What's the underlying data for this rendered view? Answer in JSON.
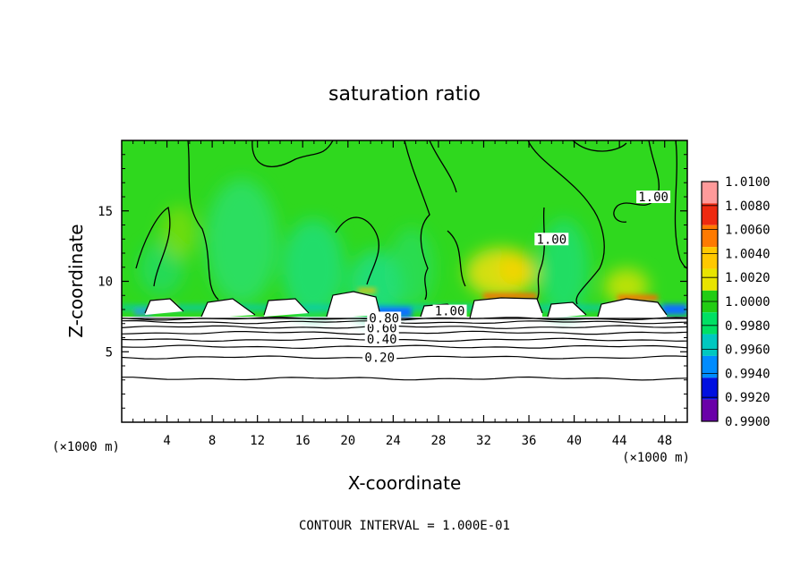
{
  "chart_data": {
    "type": "heatmap",
    "title": "saturation ratio",
    "xlabel": "X-coordinate",
    "ylabel": "Z-coordinate",
    "x_unit_left": "(×1000 m)",
    "x_unit_right": "(×1000 m)",
    "xlim": [
      0,
      50
    ],
    "ylim": [
      0,
      20
    ],
    "x_ticks": [
      4,
      8,
      12,
      16,
      20,
      24,
      28,
      32,
      36,
      40,
      44,
      48
    ],
    "y_ticks": [
      5,
      10,
      15
    ],
    "footer": "CONTOUR INTERVAL = 1.000E-01",
    "colorbar": {
      "labels": [
        "1.0100",
        "1.0080",
        "1.0060",
        "1.0040",
        "1.0020",
        "1.0000",
        "0.9980",
        "0.9960",
        "0.9940",
        "0.9920",
        "0.9900"
      ],
      "colors": [
        "#ff9a9a",
        "#ee2a10",
        "#ff7a00",
        "#ffc800",
        "#e8e400",
        "#22cc14",
        "#00e064",
        "#00c8c0",
        "#008cff",
        "#0010e0",
        "#6a00a8"
      ]
    },
    "contour_labels": [
      {
        "text": "0.20",
        "x": 22.8,
        "z": 4.6
      },
      {
        "text": "0.40",
        "x": 23.0,
        "z": 5.9
      },
      {
        "text": "0.60",
        "x": 23.0,
        "z": 6.7
      },
      {
        "text": "0.80",
        "x": 23.2,
        "z": 7.4
      },
      {
        "text": "1.00",
        "x": 29.0,
        "z": 7.9
      },
      {
        "text": "1.00",
        "x": 47.0,
        "z": 16.0
      },
      {
        "text": "1.00",
        "x": 38.0,
        "z": 13.0
      }
    ],
    "bands": [
      0.0,
      3.1,
      4.6,
      5.35,
      5.85,
      6.35,
      6.75,
      7.1,
      7.35
    ],
    "moist_layer_top_approx": 7.6,
    "warm_spots_x": [
      32,
      34,
      44,
      4
    ],
    "grid": false
  }
}
